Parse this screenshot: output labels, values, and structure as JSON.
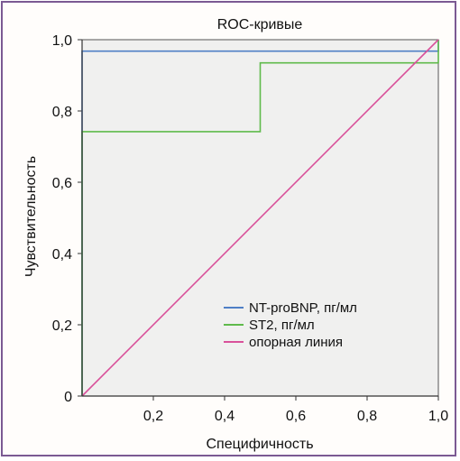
{
  "chart_data": {
    "type": "line",
    "title": "ROC-кривые",
    "xlabel": "Специфичность",
    "ylabel": "Чувствительность",
    "xlim": [
      0,
      1
    ],
    "ylim": [
      0,
      1
    ],
    "grid": false,
    "legend_position": "bottom-right",
    "x_ticks": [
      {
        "value": 0.2,
        "label": "0,2"
      },
      {
        "value": 0.4,
        "label": "0,4"
      },
      {
        "value": 0.6,
        "label": "0,6"
      },
      {
        "value": 0.8,
        "label": "0,8"
      },
      {
        "value": 1.0,
        "label": "1,0"
      }
    ],
    "y_ticks": [
      {
        "value": 0,
        "label": "0"
      },
      {
        "value": 0.2,
        "label": "0,2"
      },
      {
        "value": 0.4,
        "label": "0,4"
      },
      {
        "value": 0.6,
        "label": "0,6"
      },
      {
        "value": 0.8,
        "label": "0,8"
      },
      {
        "value": 1.0,
        "label": "1,0"
      }
    ],
    "series": [
      {
        "name": "NT-proBNP, пг/мл",
        "color": "#4f7fc6",
        "points": [
          [
            0,
            0
          ],
          [
            0,
            0.968
          ],
          [
            1.0,
            0.968
          ],
          [
            1.0,
            1.0
          ]
        ]
      },
      {
        "name": "ST2, пг/мл",
        "color": "#5fba4b",
        "points": [
          [
            0,
            0
          ],
          [
            0,
            0.742
          ],
          [
            0.5,
            0.742
          ],
          [
            0.5,
            0.935
          ],
          [
            1.0,
            0.935
          ],
          [
            1.0,
            1.0
          ]
        ]
      },
      {
        "name": "опорная линия",
        "color": "#d9519a",
        "points": [
          [
            0,
            0
          ],
          [
            1.0,
            1.0
          ]
        ]
      }
    ]
  },
  "colors": {
    "frame_border": "#7b5a93",
    "plot_background": "#f0f0ef",
    "axis": "#333333"
  }
}
